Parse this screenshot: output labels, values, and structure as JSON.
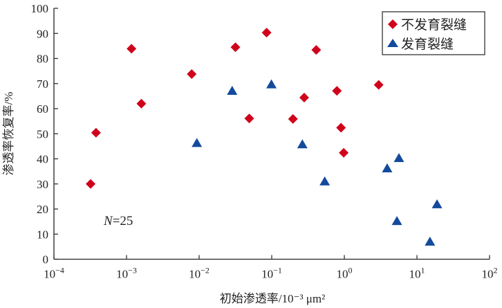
{
  "chart_data": {
    "type": "scatter",
    "title": "",
    "xlabel": "初始渗透率/10⁻³ μm²",
    "ylabel": "渗透率恢复率/%",
    "xscale": "log",
    "xlim": [
      0.0001,
      100
    ],
    "ylim": [
      0,
      100
    ],
    "x_ticks": [
      -4,
      -3,
      -2,
      -1,
      0,
      1,
      2
    ],
    "y_ticks": [
      0,
      10,
      20,
      30,
      40,
      50,
      60,
      70,
      80,
      90,
      100
    ],
    "grid": false,
    "legend_position": "top-right",
    "annotation": {
      "italic": "N",
      "rest": "=25"
    },
    "series": [
      {
        "name": "不发育裂缝",
        "marker": "diamond",
        "color": "#d0021b",
        "points": [
          [
            0.00032,
            30
          ],
          [
            0.00038,
            50.4
          ],
          [
            0.00117,
            83.9
          ],
          [
            0.0016,
            62
          ],
          [
            0.0079,
            73.8
          ],
          [
            0.0316,
            84.5
          ],
          [
            0.049,
            56.1
          ],
          [
            0.085,
            90.3
          ],
          [
            0.41,
            83.4
          ],
          [
            0.28,
            64.4
          ],
          [
            0.196,
            55.9
          ],
          [
            0.79,
            67.1
          ],
          [
            0.9,
            52.4
          ],
          [
            0.98,
            42.4
          ],
          [
            2.97,
            69.5
          ]
        ]
      },
      {
        "name": "发育裂缝",
        "marker": "triangle",
        "color": "#134a9c",
        "points": [
          [
            0.0093,
            46.1
          ],
          [
            0.0285,
            66.9
          ],
          [
            0.099,
            69.5
          ],
          [
            0.264,
            45.6
          ],
          [
            0.537,
            30.8
          ],
          [
            3.89,
            36
          ],
          [
            5.65,
            40.1
          ],
          [
            5.3,
            15
          ],
          [
            15.1,
            6.8
          ],
          [
            18.9,
            21.7
          ]
        ]
      }
    ]
  }
}
